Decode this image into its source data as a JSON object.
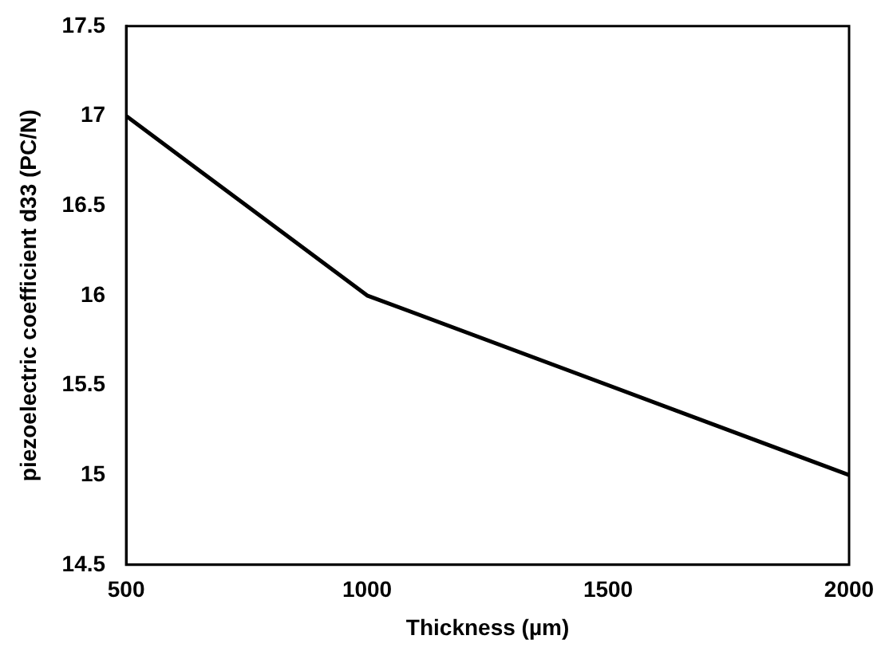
{
  "chart_data": {
    "type": "line",
    "xlabel": "Thickness (µm)",
    "ylabel": "piezoelectric coefficient d33 (PC/N)",
    "x": [
      500,
      1000,
      2000
    ],
    "series": [
      {
        "color": "#000000",
        "values": [
          17,
          16,
          15
        ]
      }
    ],
    "xlim": [
      500,
      2000
    ],
    "xticks": [
      500,
      1000,
      1500,
      2000
    ],
    "ylim": [
      14.5,
      17.5
    ],
    "yticks": [
      14.5,
      15,
      15.5,
      16,
      16.5,
      17,
      17.5
    ],
    "grid": false,
    "legend": false,
    "marker": "none",
    "line_style": "solid"
  }
}
